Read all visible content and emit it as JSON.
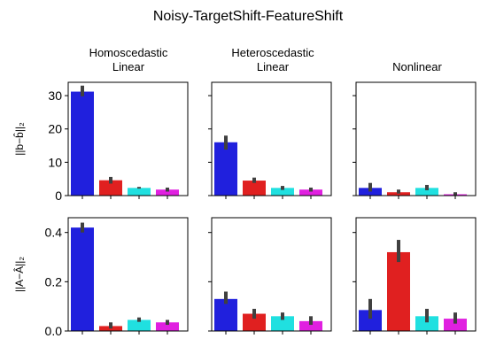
{
  "figure_title": "Noisy-TargetShift-FeatureShift",
  "colors": [
    "#2020dd",
    "#e02020",
    "#20e0e0",
    "#e020e0"
  ],
  "error_bar_color": "#404040",
  "column_titles": [
    [
      "Homoscedastic",
      "Linear"
    ],
    [
      "Heteroscedastic",
      "Linear"
    ],
    [
      "Nonlinear"
    ]
  ],
  "chart_data": [
    {
      "type": "bar",
      "row": 0,
      "col": 0,
      "ylabel": "||b−b̂||₂",
      "ylim": [
        0,
        34
      ],
      "yticks": [
        0,
        10,
        20,
        30
      ],
      "ytick_labels": [
        "0",
        "10",
        "20",
        "30"
      ],
      "values": [
        31.2,
        4.6,
        2.3,
        1.8
      ],
      "err_low": [
        29.8,
        3.6,
        2.1,
        1.2
      ],
      "err_high": [
        33.0,
        5.6,
        2.6,
        2.4
      ]
    },
    {
      "type": "bar",
      "row": 0,
      "col": 1,
      "ylim": [
        0,
        34
      ],
      "yticks": [
        0,
        10,
        20,
        30
      ],
      "values": [
        16.0,
        4.5,
        2.3,
        1.8
      ],
      "err_low": [
        13.8,
        3.8,
        1.7,
        1.2
      ],
      "err_high": [
        18.0,
        5.4,
        2.9,
        2.4
      ]
    },
    {
      "type": "bar",
      "row": 0,
      "col": 2,
      "ylim": [
        0,
        34
      ],
      "yticks": [
        0,
        10,
        20,
        30
      ],
      "values": [
        2.3,
        1.0,
        2.3,
        0.4
      ],
      "err_low": [
        1.2,
        0.6,
        1.6,
        0.1
      ],
      "err_high": [
        3.8,
        1.8,
        3.2,
        1.0
      ]
    },
    {
      "type": "bar",
      "row": 1,
      "col": 0,
      "ylabel": "||A−Â||₂",
      "ylim": [
        0,
        0.46
      ],
      "yticks": [
        0.0,
        0.2,
        0.4
      ],
      "ytick_labels": [
        "0.0",
        "0.2",
        "0.4"
      ],
      "values": [
        0.42,
        0.02,
        0.045,
        0.035
      ],
      "err_low": [
        0.4,
        0.01,
        0.037,
        0.025
      ],
      "err_high": [
        0.44,
        0.035,
        0.055,
        0.045
      ]
    },
    {
      "type": "bar",
      "row": 1,
      "col": 1,
      "ylim": [
        0,
        0.46
      ],
      "yticks": [
        0.0,
        0.2,
        0.4
      ],
      "values": [
        0.13,
        0.07,
        0.06,
        0.04
      ],
      "err_low": [
        0.11,
        0.05,
        0.045,
        0.025
      ],
      "err_high": [
        0.16,
        0.09,
        0.075,
        0.06
      ]
    },
    {
      "type": "bar",
      "row": 1,
      "col": 2,
      "ylim": [
        0,
        0.46
      ],
      "yticks": [
        0.0,
        0.2,
        0.4
      ],
      "values": [
        0.085,
        0.32,
        0.06,
        0.05
      ],
      "err_low": [
        0.05,
        0.28,
        0.035,
        0.03
      ],
      "err_high": [
        0.13,
        0.37,
        0.09,
        0.075
      ]
    }
  ]
}
